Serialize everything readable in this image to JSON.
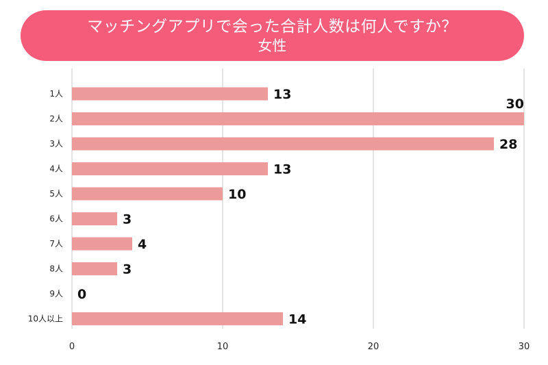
{
  "chart_data": {
    "type": "bar",
    "orientation": "horizontal",
    "title": "マッチングアプリで会った合計人数は何人ですか？",
    "subtitle": "女性",
    "categories": [
      "1人",
      "2人",
      "3人",
      "4人",
      "5人",
      "6人",
      "7人",
      "8人",
      "9人",
      "10人以上"
    ],
    "values": [
      13,
      30,
      28,
      13,
      10,
      3,
      4,
      3,
      0,
      14
    ],
    "xlim": [
      0,
      30
    ],
    "xticks": [
      0,
      10,
      20,
      30
    ],
    "grid": "vertical",
    "bar_color": "#ec9a9a",
    "title_bg_color": "#f45c79"
  }
}
